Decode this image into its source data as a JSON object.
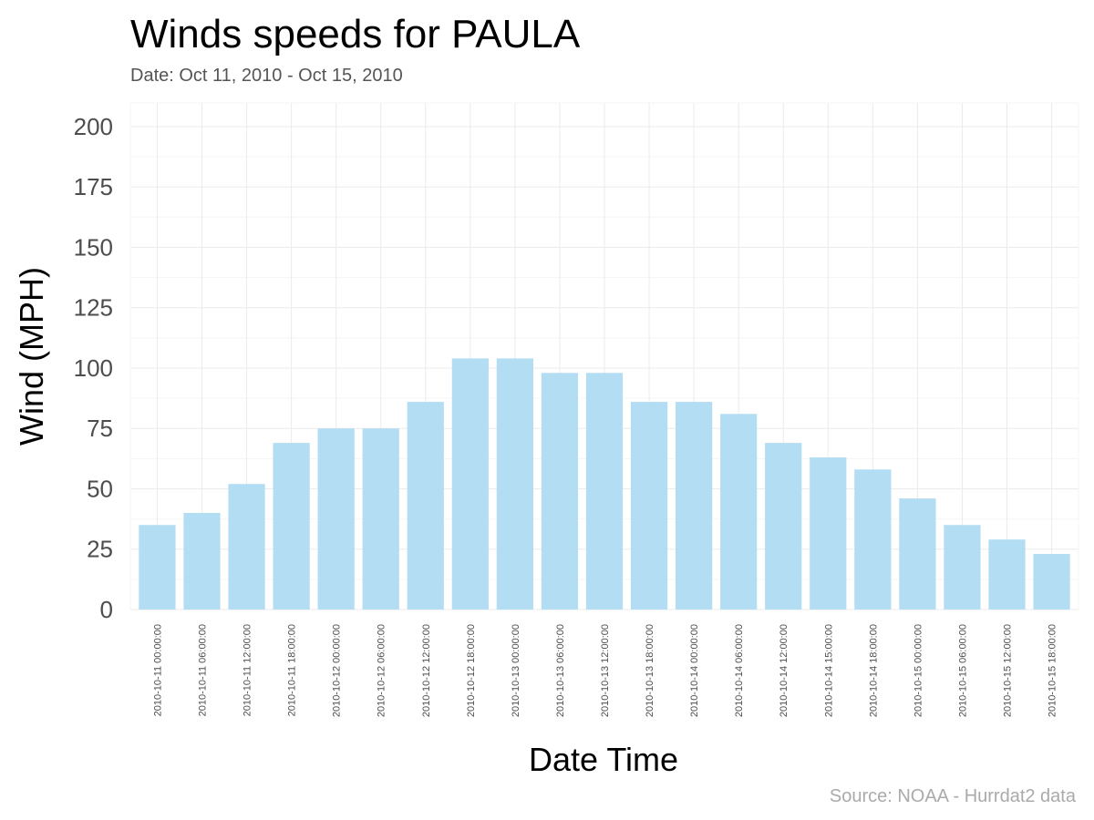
{
  "chart_data": {
    "type": "bar",
    "title": "Winds speeds for PAULA",
    "subtitle": "Date:  Oct 11, 2010 - Oct 15, 2010",
    "xlabel": "Date Time",
    "ylabel": "Wind (MPH)",
    "caption": "Source: NOAA - Hurrdat2 data",
    "ylim": [
      0,
      200
    ],
    "yticks": [
      "0",
      "25",
      "50",
      "75",
      "100",
      "125",
      "150",
      "175",
      "200"
    ],
    "grid": true,
    "bar_color": "#b3ddf2",
    "categories": [
      "2010-10-11 00:00:00",
      "2010-10-11 06:00:00",
      "2010-10-11 12:00:00",
      "2010-10-11 18:00:00",
      "2010-10-12 00:00:00",
      "2010-10-12 06:00:00",
      "2010-10-12 12:00:00",
      "2010-10-12 18:00:00",
      "2010-10-13 00:00:00",
      "2010-10-13 06:00:00",
      "2010-10-13 12:00:00",
      "2010-10-13 18:00:00",
      "2010-10-14 00:00:00",
      "2010-10-14 06:00:00",
      "2010-10-14 12:00:00",
      "2010-10-14 15:00:00",
      "2010-10-14 18:00:00",
      "2010-10-15 00:00:00",
      "2010-10-15 06:00:00",
      "2010-10-15 12:00:00",
      "2010-10-15 18:00:00"
    ],
    "values": [
      35,
      40,
      52,
      69,
      75,
      75,
      86,
      104,
      104,
      98,
      98,
      86,
      86,
      81,
      69,
      63,
      58,
      46,
      35,
      29,
      23
    ]
  }
}
